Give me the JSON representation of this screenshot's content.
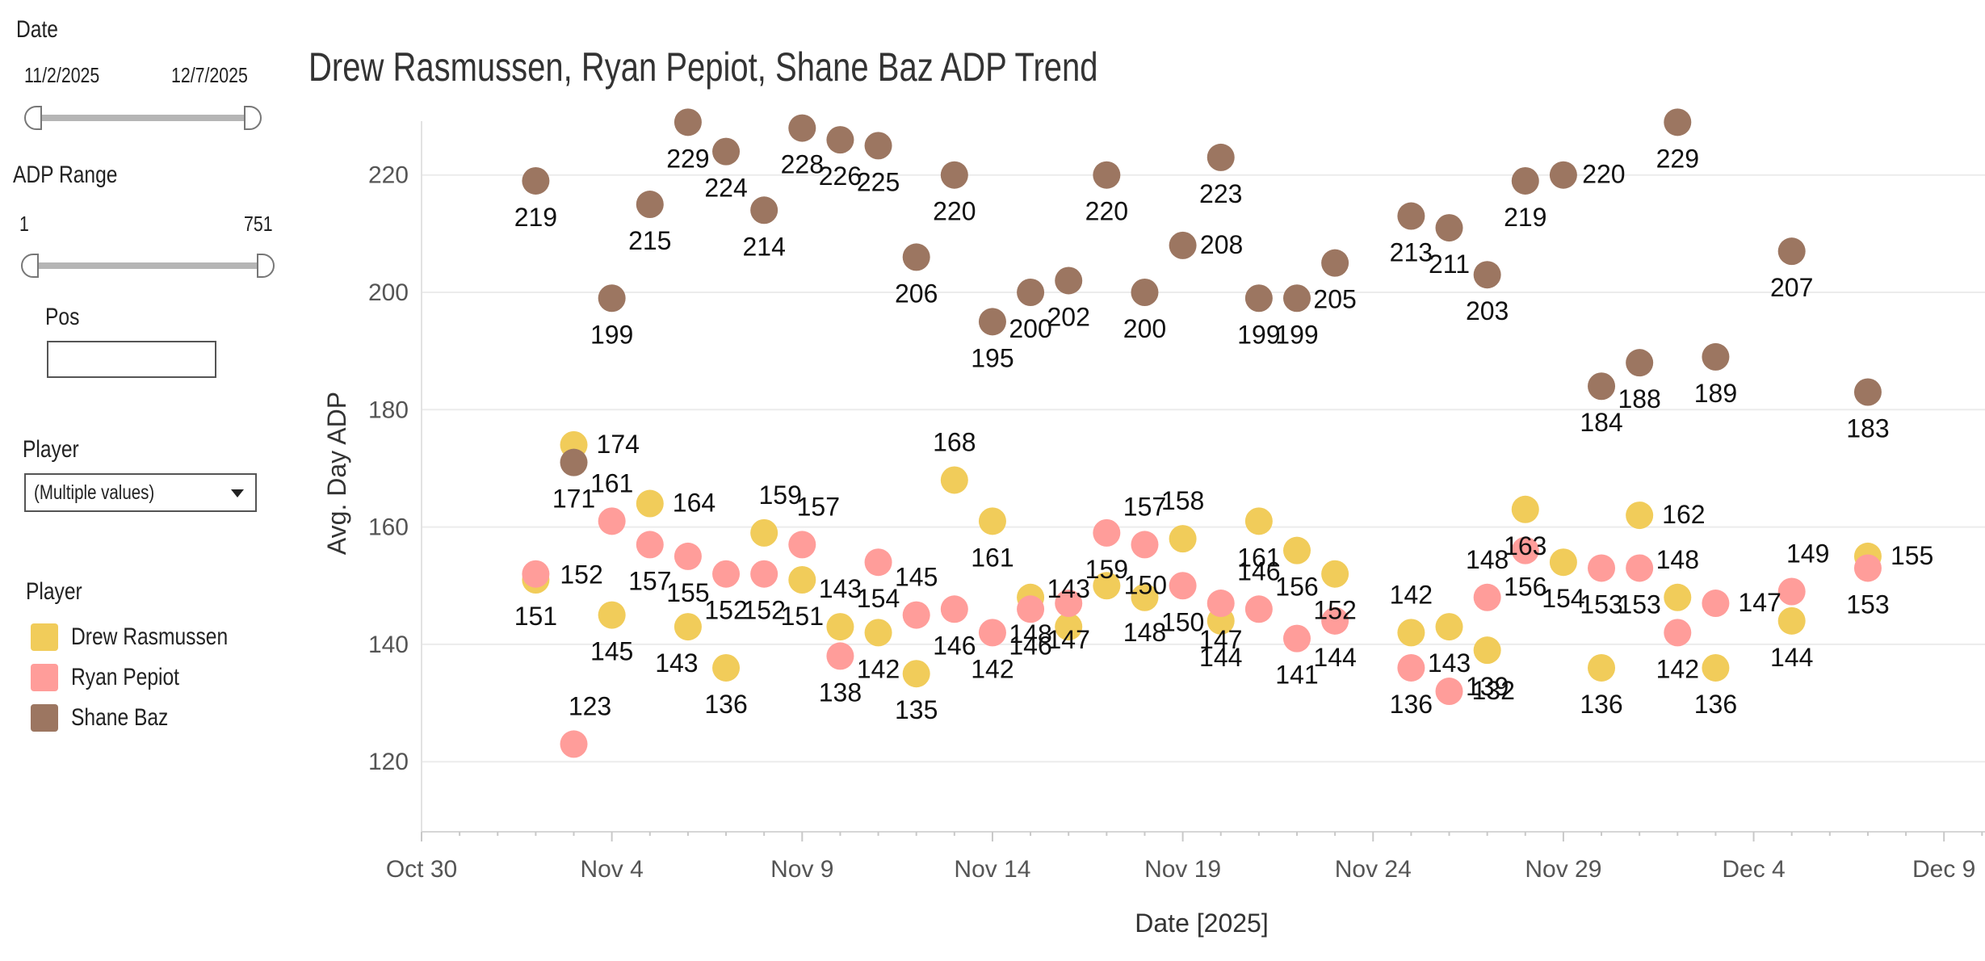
{
  "filters": {
    "date": {
      "label": "Date",
      "start": "11/2/2025",
      "end": "12/7/2025"
    },
    "adp_range": {
      "label": "ADP Range",
      "min": "1",
      "max": "751"
    },
    "pos": {
      "label": "Pos",
      "value": ""
    },
    "player": {
      "label": "Player",
      "value": "(Multiple values)"
    }
  },
  "legend": {
    "title": "Player",
    "items": [
      {
        "name": "Drew Rasmussen",
        "color": "#F1CC5A"
      },
      {
        "name": "Ryan Pepiot",
        "color": "#FF9D9A"
      },
      {
        "name": "Shane Baz",
        "color": "#9C7661"
      }
    ]
  },
  "chart_data": {
    "type": "scatter",
    "title": "Drew Rasmussen, Ryan Pepiot, Shane Baz ADP Trend",
    "xlabel": "Date [2025]",
    "ylabel": "Avg. Day ADP",
    "x_ticks": [
      "Oct 30",
      "Nov 4",
      "Nov 9",
      "Nov 14",
      "Nov 19",
      "Nov 24",
      "Nov 29",
      "Dec 4",
      "Dec 9"
    ],
    "y_ticks": [
      120,
      140,
      160,
      180,
      200,
      220
    ],
    "xlim": [
      "2025-10-30",
      "2025-12-10"
    ],
    "ylim": [
      116,
      233
    ],
    "grid": "horizontal",
    "series": [
      {
        "name": "Drew Rasmussen",
        "color": "#F1CC5A",
        "points": [
          {
            "date": "2025-11-02",
            "value": 151
          },
          {
            "date": "2025-11-03",
            "value": 174
          },
          {
            "date": "2025-11-04",
            "value": 145
          },
          {
            "date": "2025-11-05",
            "value": 164
          },
          {
            "date": "2025-11-06",
            "value": 143
          },
          {
            "date": "2025-11-07",
            "value": 136
          },
          {
            "date": "2025-11-08",
            "value": 159
          },
          {
            "date": "2025-11-09",
            "value": 151
          },
          {
            "date": "2025-11-10",
            "value": 143
          },
          {
            "date": "2025-11-11",
            "value": 142
          },
          {
            "date": "2025-11-12",
            "value": 135
          },
          {
            "date": "2025-11-13",
            "value": 168
          },
          {
            "date": "2025-11-14",
            "value": 161
          },
          {
            "date": "2025-11-15",
            "value": 148
          },
          {
            "date": "2025-11-16",
            "value": 143
          },
          {
            "date": "2025-11-17",
            "value": 150
          },
          {
            "date": "2025-11-18",
            "value": 148
          },
          {
            "date": "2025-11-19",
            "value": 158
          },
          {
            "date": "2025-11-20",
            "value": 144
          },
          {
            "date": "2025-11-21",
            "value": 161
          },
          {
            "date": "2025-11-22",
            "value": 156
          },
          {
            "date": "2025-11-23",
            "value": 152
          },
          {
            "date": "2025-11-25",
            "value": 142
          },
          {
            "date": "2025-11-26",
            "value": 143
          },
          {
            "date": "2025-11-27",
            "value": 139
          },
          {
            "date": "2025-11-28",
            "value": 163
          },
          {
            "date": "2025-11-29",
            "value": 154
          },
          {
            "date": "2025-11-30",
            "value": 136
          },
          {
            "date": "2025-12-01",
            "value": 162
          },
          {
            "date": "2025-12-02",
            "value": 148
          },
          {
            "date": "2025-12-03",
            "value": 136
          },
          {
            "date": "2025-12-05",
            "value": 144
          },
          {
            "date": "2025-12-07",
            "value": 155
          }
        ]
      },
      {
        "name": "Ryan Pepiot",
        "color": "#FF9D9A",
        "points": [
          {
            "date": "2025-11-02",
            "value": 152
          },
          {
            "date": "2025-11-03",
            "value": 123
          },
          {
            "date": "2025-11-04",
            "value": 161
          },
          {
            "date": "2025-11-05",
            "value": 157
          },
          {
            "date": "2025-11-06",
            "value": 155
          },
          {
            "date": "2025-11-07",
            "value": 152
          },
          {
            "date": "2025-11-08",
            "value": 152
          },
          {
            "date": "2025-11-09",
            "value": 157
          },
          {
            "date": "2025-11-10",
            "value": 138
          },
          {
            "date": "2025-11-11",
            "value": 154
          },
          {
            "date": "2025-11-12",
            "value": 145
          },
          {
            "date": "2025-11-13",
            "value": 146
          },
          {
            "date": "2025-11-14",
            "value": 142
          },
          {
            "date": "2025-11-15",
            "value": 146
          },
          {
            "date": "2025-11-16",
            "value": 147
          },
          {
            "date": "2025-11-17",
            "value": 159
          },
          {
            "date": "2025-11-18",
            "value": 157
          },
          {
            "date": "2025-11-19",
            "value": 150
          },
          {
            "date": "2025-11-20",
            "value": 147
          },
          {
            "date": "2025-11-21",
            "value": 146
          },
          {
            "date": "2025-11-22",
            "value": 141
          },
          {
            "date": "2025-11-23",
            "value": 144
          },
          {
            "date": "2025-11-25",
            "value": 136
          },
          {
            "date": "2025-11-26",
            "value": 132
          },
          {
            "date": "2025-11-27",
            "value": 148
          },
          {
            "date": "2025-11-28",
            "value": 156
          },
          {
            "date": "2025-11-30",
            "value": 153
          },
          {
            "date": "2025-12-01",
            "value": 153
          },
          {
            "date": "2025-12-02",
            "value": 142
          },
          {
            "date": "2025-12-03",
            "value": 147
          },
          {
            "date": "2025-12-05",
            "value": 149
          },
          {
            "date": "2025-12-07",
            "value": 153
          }
        ]
      },
      {
        "name": "Shane Baz",
        "color": "#9C7661",
        "points": [
          {
            "date": "2025-11-02",
            "value": 219
          },
          {
            "date": "2025-11-03",
            "value": 171
          },
          {
            "date": "2025-11-04",
            "value": 199
          },
          {
            "date": "2025-11-05",
            "value": 215
          },
          {
            "date": "2025-11-06",
            "value": 229
          },
          {
            "date": "2025-11-07",
            "value": 224
          },
          {
            "date": "2025-11-08",
            "value": 214
          },
          {
            "date": "2025-11-09",
            "value": 228
          },
          {
            "date": "2025-11-10",
            "value": 226
          },
          {
            "date": "2025-11-11",
            "value": 225
          },
          {
            "date": "2025-11-12",
            "value": 206
          },
          {
            "date": "2025-11-13",
            "value": 220
          },
          {
            "date": "2025-11-14",
            "value": 195
          },
          {
            "date": "2025-11-15",
            "value": 200
          },
          {
            "date": "2025-11-16",
            "value": 202
          },
          {
            "date": "2025-11-17",
            "value": 220
          },
          {
            "date": "2025-11-18",
            "value": 200
          },
          {
            "date": "2025-11-19",
            "value": 208
          },
          {
            "date": "2025-11-20",
            "value": 223
          },
          {
            "date": "2025-11-21",
            "value": 199
          },
          {
            "date": "2025-11-22",
            "value": 199
          },
          {
            "date": "2025-11-23",
            "value": 205
          },
          {
            "date": "2025-11-25",
            "value": 213
          },
          {
            "date": "2025-11-26",
            "value": 211
          },
          {
            "date": "2025-11-27",
            "value": 203
          },
          {
            "date": "2025-11-28",
            "value": 219
          },
          {
            "date": "2025-11-29",
            "value": 220
          },
          {
            "date": "2025-11-30",
            "value": 184
          },
          {
            "date": "2025-12-01",
            "value": 188
          },
          {
            "date": "2025-12-02",
            "value": 229
          },
          {
            "date": "2025-12-03",
            "value": 189
          },
          {
            "date": "2025-12-05",
            "value": 207
          },
          {
            "date": "2025-12-07",
            "value": 183
          }
        ]
      }
    ]
  }
}
